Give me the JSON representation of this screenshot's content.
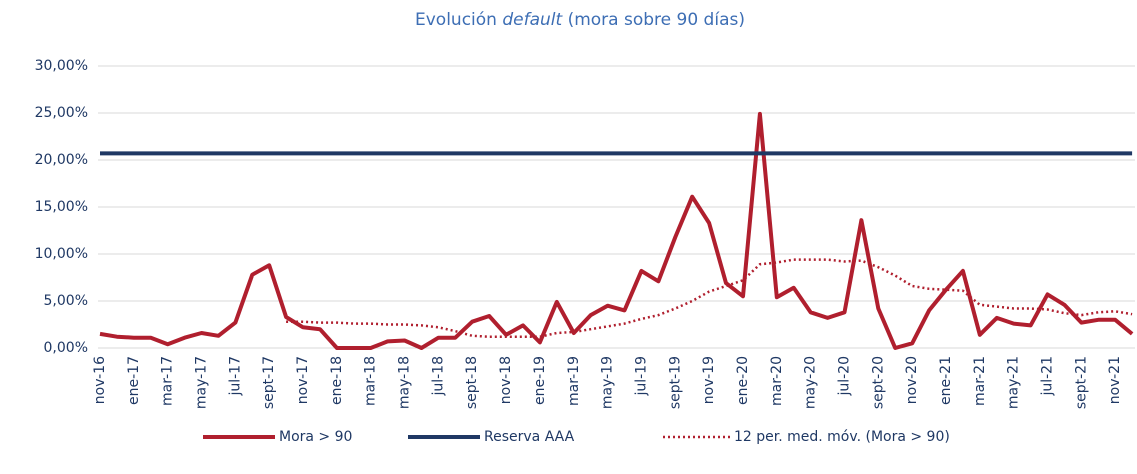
{
  "chart_data": {
    "type": "line",
    "title": [
      "Evolución",
      "default",
      "(mora sobre 90 días)"
    ],
    "categories": [
      "nov-16",
      null,
      "ene-17",
      null,
      "mar-17",
      null,
      "may-17",
      null,
      "jul-17",
      null,
      "sept-17",
      null,
      "nov-17",
      null,
      "ene-18",
      null,
      "mar-18",
      null,
      "may-18",
      null,
      "jul-18",
      null,
      "sept-18",
      null,
      "nov-18",
      null,
      "ene-19",
      null,
      "mar-19",
      null,
      "may-19",
      null,
      "jul-19",
      null,
      "sept-19",
      null,
      "nov-19",
      null,
      "ene-20",
      null,
      "mar-20",
      null,
      "may-20",
      null,
      "jul-20",
      null,
      "sept-20",
      null,
      "nov-20",
      null,
      "ene-21",
      null,
      "mar-21",
      null,
      "may-21",
      null,
      "jul-21",
      null,
      "sept-21",
      null,
      "nov-21",
      null
    ],
    "series": [
      {
        "name": "Mora > 90",
        "color": "#b01f2e",
        "style": "solid",
        "values": [
          1.5,
          1.2,
          1.1,
          1.1,
          0.4,
          1.1,
          1.6,
          1.3,
          2.7,
          7.8,
          8.8,
          3.3,
          2.2,
          2.0,
          0,
          0,
          0,
          0.7,
          0.8,
          0,
          1.1,
          1.1,
          2.8,
          3.4,
          1.4,
          2.4,
          0.6,
          4.9,
          1.6,
          3.5,
          4.5,
          4.0,
          8.2,
          7.1,
          11.8,
          16.1,
          13.3,
          6.9,
          5.5,
          24.9,
          5.4,
          6.4,
          3.8,
          3.2,
          3.8,
          13.6,
          4.2,
          0,
          0.5,
          4.0,
          6.2,
          8.2,
          1.4,
          3.2,
          2.6,
          2.4,
          5.7,
          4.6,
          2.7,
          3.0,
          3.0,
          1.5
        ]
      },
      {
        "name": "Reserva AAA",
        "color": "#1f3864",
        "style": "solid",
        "values": [
          20.7,
          20.7,
          20.7,
          20.7,
          20.7,
          20.7,
          20.7,
          20.7,
          20.7,
          20.7,
          20.7,
          20.7,
          20.7,
          20.7,
          20.7,
          20.7,
          20.7,
          20.7,
          20.7,
          20.7,
          20.7,
          20.7,
          20.7,
          20.7,
          20.7,
          20.7,
          20.7,
          20.7,
          20.7,
          20.7,
          20.7,
          20.7,
          20.7,
          20.7,
          20.7,
          20.7,
          20.7,
          20.7,
          20.7,
          20.7,
          20.7,
          20.7,
          20.7,
          20.7,
          20.7,
          20.7,
          20.7,
          20.7,
          20.7,
          20.7,
          20.7,
          20.7,
          20.7,
          20.7,
          20.7,
          20.7,
          20.7,
          20.7,
          20.7,
          20.7,
          20.7,
          20.7
        ]
      },
      {
        "name": "12 per. med. móv. (Mora > 90)",
        "color": "#b01f2e",
        "style": "dotted",
        "values": [
          null,
          null,
          null,
          null,
          null,
          null,
          null,
          null,
          null,
          null,
          null,
          2.8,
          2.8,
          2.7,
          2.7,
          2.6,
          2.6,
          2.5,
          2.5,
          2.4,
          2.2,
          1.8,
          1.3,
          1.2,
          1.2,
          1.2,
          1.2,
          1.6,
          1.7,
          2.0,
          2.3,
          2.6,
          3.1,
          3.5,
          4.2,
          5.0,
          6.0,
          6.6,
          7.2,
          8.9,
          9.1,
          9.4,
          9.4,
          9.4,
          9.2,
          9.3,
          8.6,
          7.7,
          6.6,
          6.3,
          6.2,
          6.1,
          4.6,
          4.4,
          4.2,
          4.2,
          4.1,
          3.7,
          3.5,
          3.8,
          3.9,
          3.6
        ]
      }
    ],
    "ylim": [
      0,
      30
    ],
    "yticks": [
      {
        "value": 0,
        "label": "0,00%"
      },
      {
        "value": 5,
        "label": "5,00%"
      },
      {
        "value": 10,
        "label": "10,00%"
      },
      {
        "value": 15,
        "label": "15,00%"
      },
      {
        "value": 20,
        "label": "20,00%"
      },
      {
        "value": 25,
        "label": "25,00%"
      },
      {
        "value": 30,
        "label": "30,00%"
      }
    ],
    "grid": true,
    "legend": "bottom"
  }
}
